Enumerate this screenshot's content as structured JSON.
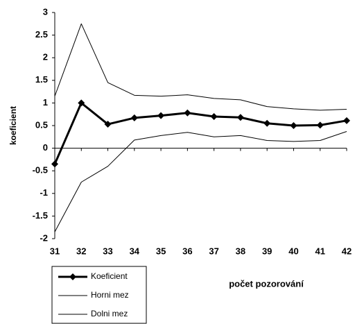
{
  "chart_data": {
    "type": "line",
    "y_label": "koeficient",
    "x_label": "počet pozorování",
    "x": [
      31,
      32,
      33,
      34,
      35,
      36,
      37,
      38,
      39,
      40,
      41,
      42
    ],
    "xlim": [
      31,
      42
    ],
    "xticks": [
      31,
      32,
      33,
      34,
      35,
      36,
      37,
      38,
      39,
      40,
      41,
      42
    ],
    "ylim": [
      -2,
      3
    ],
    "yticks": [
      3,
      2.5,
      2,
      1.5,
      1,
      0.5,
      0,
      -0.5,
      -1,
      -1.5,
      -2
    ],
    "series": [
      {
        "name": "Koeficient",
        "color": "#000000",
        "marker": "diamond",
        "values": [
          -0.35,
          1.0,
          0.53,
          0.67,
          0.72,
          0.78,
          0.7,
          0.68,
          0.55,
          0.5,
          0.51,
          0.61
        ]
      },
      {
        "name": "Horni mez",
        "color": "#000000",
        "values": [
          1.15,
          2.75,
          1.45,
          1.17,
          1.15,
          1.18,
          1.1,
          1.07,
          0.92,
          0.87,
          0.84,
          0.86
        ]
      },
      {
        "name": "Dolni mez",
        "color": "#000000",
        "values": [
          -1.85,
          -0.75,
          -0.4,
          0.18,
          0.28,
          0.35,
          0.25,
          0.28,
          0.17,
          0.15,
          0.17,
          0.37
        ]
      }
    ]
  }
}
